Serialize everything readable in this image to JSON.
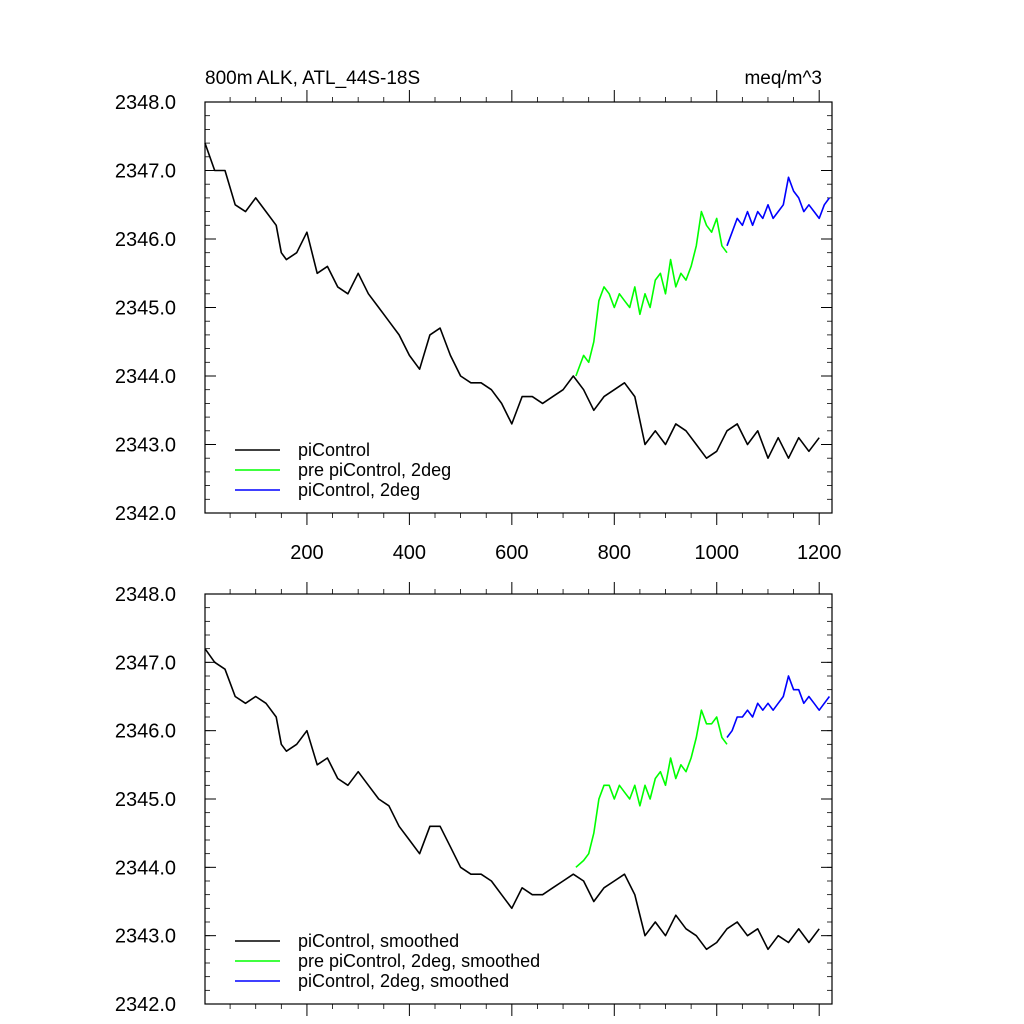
{
  "chart_data": [
    {
      "type": "line",
      "title_left": "800m ALK, ATL_44S-18S",
      "title_right": "meq/m^3",
      "xlim": [
        1,
        1225
      ],
      "ylim": [
        2342.0,
        2348.0
      ],
      "x_ticks": [
        200,
        400,
        600,
        800,
        1000,
        1200
      ],
      "y_ticks": [
        "2342.0",
        "2343.0",
        "2344.0",
        "2345.0",
        "2346.0",
        "2347.0",
        "2348.0"
      ],
      "show_x_tick_labels": true,
      "legend_position": "bottom-left",
      "series": [
        {
          "name": "piControl",
          "color": "#000000",
          "x": [
            1,
            20,
            40,
            60,
            80,
            100,
            120,
            140,
            150,
            160,
            180,
            200,
            220,
            240,
            260,
            280,
            300,
            320,
            340,
            360,
            380,
            400,
            420,
            440,
            460,
            480,
            500,
            520,
            540,
            560,
            580,
            600,
            620,
            640,
            660,
            680,
            700,
            720,
            740,
            760,
            780,
            800,
            820,
            840,
            860,
            880,
            900,
            920,
            940,
            960,
            980,
            1000,
            1020,
            1040,
            1060,
            1080,
            1100,
            1120,
            1140,
            1160,
            1180,
            1200
          ],
          "y": [
            2347.4,
            2347.0,
            2347.0,
            2346.5,
            2346.4,
            2346.6,
            2346.4,
            2346.2,
            2345.8,
            2345.7,
            2345.8,
            2346.1,
            2345.5,
            2345.6,
            2345.3,
            2345.2,
            2345.5,
            2345.2,
            2345.0,
            2344.8,
            2344.6,
            2344.3,
            2344.1,
            2344.6,
            2344.7,
            2344.3,
            2344.0,
            2343.9,
            2343.9,
            2343.8,
            2343.6,
            2343.3,
            2343.7,
            2343.7,
            2343.6,
            2343.7,
            2343.8,
            2344.0,
            2343.8,
            2343.5,
            2343.7,
            2343.8,
            2343.9,
            2343.7,
            2343.0,
            2343.2,
            2343.0,
            2343.3,
            2343.2,
            2343.0,
            2342.8,
            2342.9,
            2343.2,
            2343.3,
            2343.0,
            2343.2,
            2342.8,
            2343.1,
            2342.8,
            2343.1,
            2342.9,
            2343.1
          ]
        },
        {
          "name": "pre piControl, 2deg",
          "color": "#00ff00",
          "x": [
            725,
            740,
            750,
            760,
            770,
            780,
            790,
            800,
            810,
            820,
            830,
            840,
            850,
            860,
            870,
            880,
            890,
            900,
            910,
            920,
            930,
            940,
            950,
            960,
            970,
            980,
            990,
            1000,
            1010,
            1020
          ],
          "y": [
            2344.0,
            2344.3,
            2344.2,
            2344.5,
            2345.1,
            2345.3,
            2345.2,
            2345.0,
            2345.2,
            2345.1,
            2345.0,
            2345.3,
            2344.9,
            2345.2,
            2345.0,
            2345.4,
            2345.5,
            2345.2,
            2345.7,
            2345.3,
            2345.5,
            2345.4,
            2345.6,
            2345.9,
            2346.4,
            2346.2,
            2346.1,
            2346.3,
            2345.9,
            2345.8
          ]
        },
        {
          "name": "piControl, 2deg",
          "color": "#0000ff",
          "x": [
            1020,
            1030,
            1040,
            1050,
            1060,
            1070,
            1080,
            1090,
            1100,
            1110,
            1120,
            1130,
            1140,
            1150,
            1160,
            1170,
            1180,
            1190,
            1200,
            1210,
            1220
          ],
          "y": [
            2345.9,
            2346.1,
            2346.3,
            2346.2,
            2346.4,
            2346.2,
            2346.4,
            2346.3,
            2346.5,
            2346.3,
            2346.4,
            2346.5,
            2346.9,
            2346.7,
            2346.6,
            2346.4,
            2346.5,
            2346.4,
            2346.3,
            2346.5,
            2346.6
          ]
        }
      ]
    },
    {
      "type": "line",
      "xlim": [
        1,
        1225
      ],
      "ylim": [
        2342.0,
        2348.0
      ],
      "x_ticks": [
        200,
        400,
        600,
        800,
        1000,
        1200
      ],
      "y_ticks": [
        "2342.0",
        "2343.0",
        "2344.0",
        "2345.0",
        "2346.0",
        "2347.0",
        "2348.0"
      ],
      "show_x_tick_labels": false,
      "legend_position": "bottom-left",
      "series": [
        {
          "name": "piControl, smoothed",
          "color": "#000000",
          "x": [
            1,
            20,
            40,
            60,
            80,
            100,
            120,
            140,
            150,
            160,
            180,
            200,
            220,
            240,
            260,
            280,
            300,
            320,
            340,
            360,
            380,
            400,
            420,
            440,
            460,
            480,
            500,
            520,
            540,
            560,
            580,
            600,
            620,
            640,
            660,
            680,
            700,
            720,
            740,
            760,
            780,
            800,
            820,
            840,
            860,
            880,
            900,
            920,
            940,
            960,
            980,
            1000,
            1020,
            1040,
            1060,
            1080,
            1100,
            1120,
            1140,
            1160,
            1180,
            1200
          ],
          "y": [
            2347.2,
            2347.0,
            2346.9,
            2346.5,
            2346.4,
            2346.5,
            2346.4,
            2346.2,
            2345.8,
            2345.7,
            2345.8,
            2346.0,
            2345.5,
            2345.6,
            2345.3,
            2345.2,
            2345.4,
            2345.2,
            2345.0,
            2344.9,
            2344.6,
            2344.4,
            2344.2,
            2344.6,
            2344.6,
            2344.3,
            2344.0,
            2343.9,
            2343.9,
            2343.8,
            2343.6,
            2343.4,
            2343.7,
            2343.6,
            2343.6,
            2343.7,
            2343.8,
            2343.9,
            2343.8,
            2343.5,
            2343.7,
            2343.8,
            2343.9,
            2343.6,
            2343.0,
            2343.2,
            2343.0,
            2343.3,
            2343.1,
            2343.0,
            2342.8,
            2342.9,
            2343.1,
            2343.2,
            2343.0,
            2343.1,
            2342.8,
            2343.0,
            2342.9,
            2343.1,
            2342.9,
            2343.1
          ]
        },
        {
          "name": "pre piControl, 2deg, smoothed",
          "color": "#00ff00",
          "x": [
            725,
            740,
            750,
            760,
            770,
            780,
            790,
            800,
            810,
            820,
            830,
            840,
            850,
            860,
            870,
            880,
            890,
            900,
            910,
            920,
            930,
            940,
            950,
            960,
            970,
            980,
            990,
            1000,
            1010,
            1020
          ],
          "y": [
            2344.0,
            2344.1,
            2344.2,
            2344.5,
            2345.0,
            2345.2,
            2345.2,
            2345.0,
            2345.2,
            2345.1,
            2345.0,
            2345.2,
            2344.9,
            2345.2,
            2345.0,
            2345.3,
            2345.4,
            2345.2,
            2345.6,
            2345.3,
            2345.5,
            2345.4,
            2345.6,
            2345.9,
            2346.3,
            2346.1,
            2346.1,
            2346.2,
            2345.9,
            2345.8
          ]
        },
        {
          "name": "piControl, 2deg, smoothed",
          "color": "#0000ff",
          "x": [
            1020,
            1030,
            1040,
            1050,
            1060,
            1070,
            1080,
            1090,
            1100,
            1110,
            1120,
            1130,
            1140,
            1150,
            1160,
            1170,
            1180,
            1190,
            1200,
            1210,
            1220
          ],
          "y": [
            2345.9,
            2346.0,
            2346.2,
            2346.2,
            2346.3,
            2346.2,
            2346.4,
            2346.3,
            2346.4,
            2346.3,
            2346.4,
            2346.5,
            2346.8,
            2346.6,
            2346.6,
            2346.4,
            2346.5,
            2346.4,
            2346.3,
            2346.4,
            2346.5
          ]
        }
      ]
    }
  ]
}
